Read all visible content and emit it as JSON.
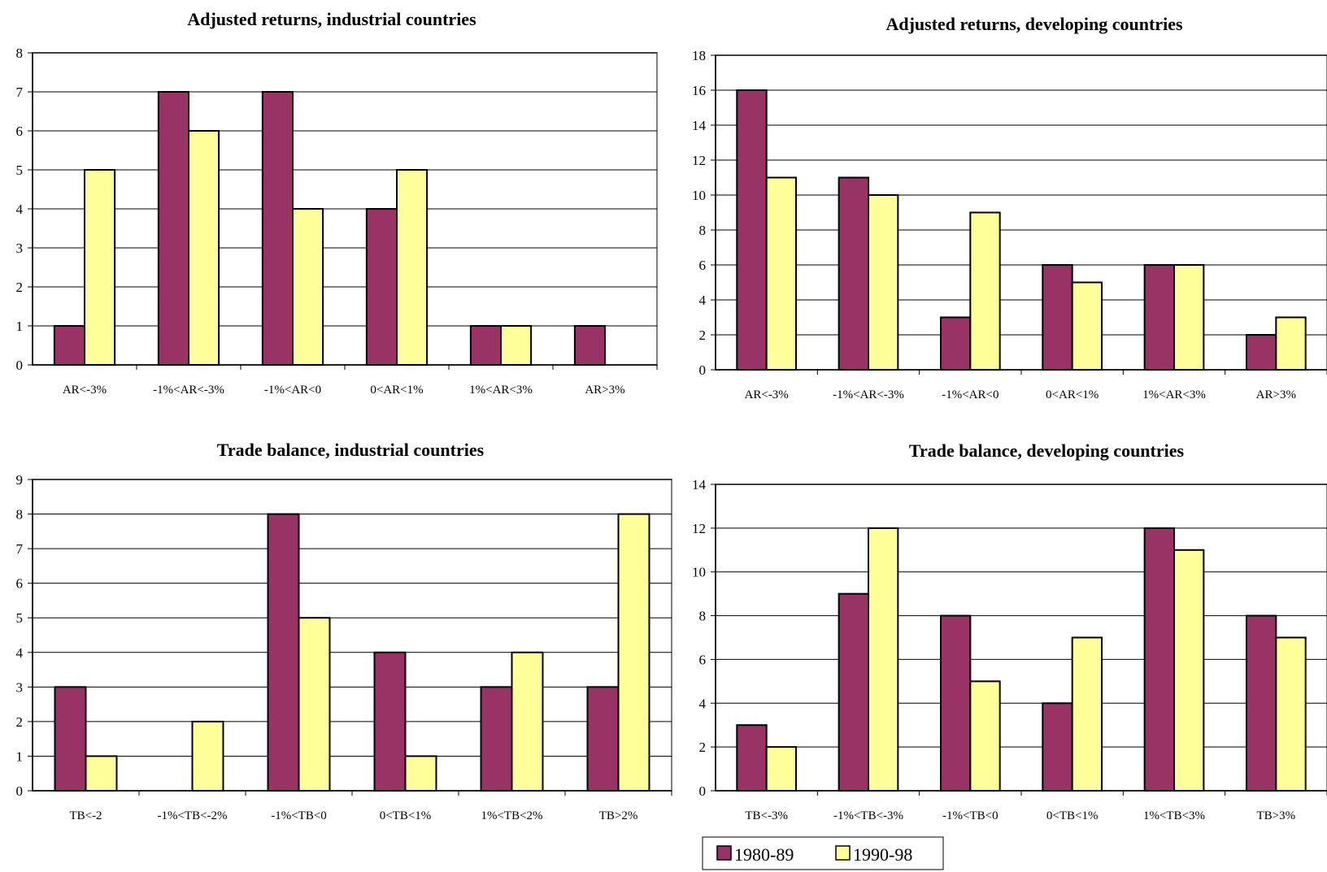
{
  "colors": {
    "series_1980": "#993366",
    "series_1990": "#FFFF99",
    "axis": "#808080",
    "grid": "#000000",
    "bar_outline": "#000000"
  },
  "legend": {
    "items": [
      {
        "label": "1980-89",
        "color": "#993366"
      },
      {
        "label": "1990-98",
        "color": "#FFFF99"
      }
    ]
  },
  "chart_data": [
    {
      "type": "bar",
      "title": "Adjusted returns, industrial countries",
      "categories": [
        "AR<-3%",
        "-1%<AR<-3%",
        "-1%<AR<0",
        "0<AR<1%",
        "1%<AR<3%",
        "AR>3%"
      ],
      "series": [
        {
          "name": "1980-89",
          "values": [
            1,
            7,
            7,
            4,
            1,
            1
          ]
        },
        {
          "name": "1990-98",
          "values": [
            5,
            6,
            4,
            5,
            1,
            0
          ]
        }
      ],
      "ylim": [
        0,
        8
      ],
      "yticks": [
        0,
        1,
        2,
        3,
        4,
        5,
        6,
        7,
        8
      ],
      "grid": true
    },
    {
      "type": "bar",
      "title": "Adjusted returns, developing countries",
      "categories": [
        "AR<-3%",
        "-1%<AR<-3%",
        "-1%<AR<0",
        "0<AR<1%",
        "1%<AR<3%",
        "AR>3%"
      ],
      "series": [
        {
          "name": "1980-89",
          "values": [
            16,
            11,
            3,
            6,
            6,
            2
          ]
        },
        {
          "name": "1990-98",
          "values": [
            11,
            10,
            9,
            5,
            6,
            3
          ]
        }
      ],
      "ylim": [
        0,
        18
      ],
      "yticks": [
        0,
        2,
        4,
        6,
        8,
        10,
        12,
        14,
        16,
        18
      ],
      "grid": true
    },
    {
      "type": "bar",
      "title": "Trade balance, industrial countries",
      "categories": [
        "TB<-2",
        "-1%<TB<-2%",
        "-1%<TB<0",
        "0<TB<1%",
        "1%<TB<2%",
        "TB>2%"
      ],
      "series": [
        {
          "name": "1980-89",
          "values": [
            3,
            0,
            8,
            4,
            3,
            3
          ]
        },
        {
          "name": "1990-98",
          "values": [
            1,
            2,
            5,
            1,
            4,
            8
          ]
        }
      ],
      "ylim": [
        0,
        9
      ],
      "yticks": [
        0,
        1,
        2,
        3,
        4,
        5,
        6,
        7,
        8,
        9
      ],
      "grid": true
    },
    {
      "type": "bar",
      "title": "Trade balance, developing countries",
      "categories": [
        "TB<-3%",
        "-1%<TB<-3%",
        "-1%<TB<0",
        "0<TB<1%",
        "1%<TB<3%",
        "TB>3%"
      ],
      "series": [
        {
          "name": "1980-89",
          "values": [
            3,
            9,
            8,
            4,
            12,
            8
          ]
        },
        {
          "name": "1990-98",
          "values": [
            2,
            12,
            5,
            7,
            11,
            7
          ]
        }
      ],
      "ylim": [
        0,
        14
      ],
      "yticks": [
        0,
        2,
        4,
        6,
        8,
        10,
        12,
        14
      ],
      "grid": true
    }
  ]
}
